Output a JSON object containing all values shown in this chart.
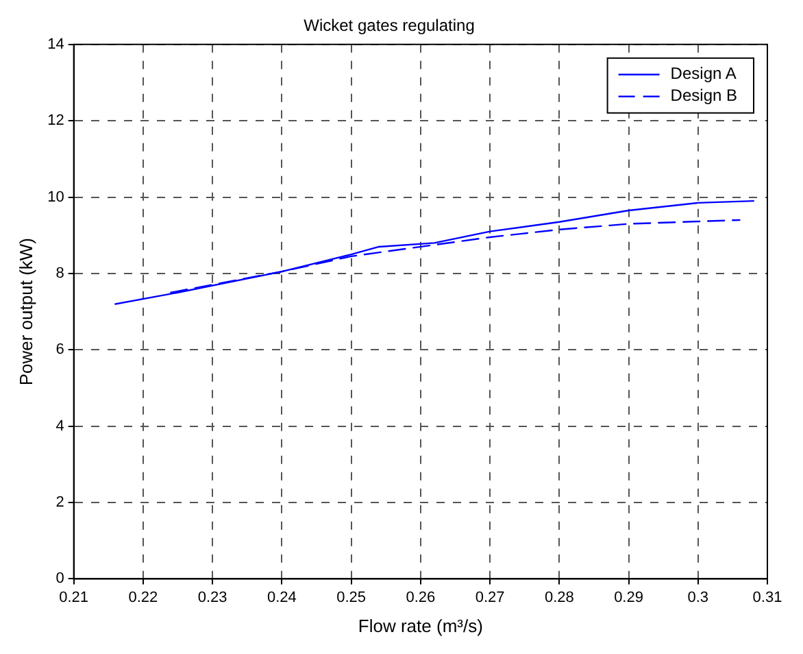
{
  "chart_data": {
    "type": "line",
    "title": "Wicket gates regulating",
    "xlabel": "Flow rate (m³/s)",
    "ylabel": "Power output (kW)",
    "xlim": [
      0.21,
      0.31
    ],
    "xticks": [
      0.21,
      0.22,
      0.23,
      0.24,
      0.25,
      0.26,
      0.27,
      0.28,
      0.29,
      0.3,
      0.31
    ],
    "ylim": [
      0,
      14
    ],
    "yticks": [
      0,
      2,
      4,
      6,
      8,
      10,
      12,
      14
    ],
    "grid": true,
    "legend": "top right",
    "marker": "none",
    "series": [
      {
        "name": "Design A",
        "color": "#0000ff",
        "line_style": "solid",
        "x": [
          0.216,
          0.225,
          0.24,
          0.25,
          0.254,
          0.262,
          0.27,
          0.28,
          0.29,
          0.3,
          0.308
        ],
        "values": [
          7.2,
          7.5,
          8.05,
          8.5,
          8.7,
          8.8,
          9.1,
          9.35,
          9.65,
          9.85,
          9.9
        ]
      },
      {
        "name": "Design B",
        "color": "#0000ff",
        "line_style": "dashed",
        "x": [
          0.224,
          0.24,
          0.25,
          0.262,
          0.27,
          0.28,
          0.29,
          0.306
        ],
        "values": [
          7.5,
          8.05,
          8.45,
          8.75,
          8.95,
          9.15,
          9.3,
          9.4
        ]
      }
    ]
  }
}
